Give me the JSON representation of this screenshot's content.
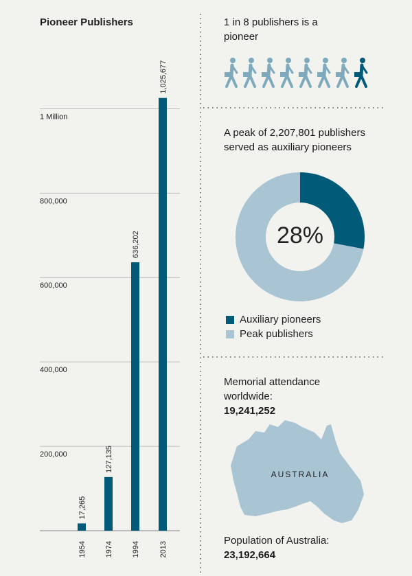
{
  "chart_data": [
    {
      "type": "bar",
      "title": "Pioneer Publishers",
      "categories": [
        "1954",
        "1974",
        "1994",
        "2013"
      ],
      "values": [
        17265,
        127135,
        636202,
        1025677
      ],
      "value_labels": [
        "17,265",
        "127,135",
        "636,202",
        "1,025,677"
      ],
      "color": "#005a78",
      "ylim": [
        0,
        1100000
      ],
      "yticks": [
        {
          "value": 200000,
          "label": "200,000"
        },
        {
          "value": 400000,
          "label": "400,000"
        },
        {
          "value": 600000,
          "label": "600,000"
        },
        {
          "value": 800000,
          "label": "800,000"
        },
        {
          "value": 1000000,
          "label": "1 Million"
        }
      ],
      "grid": true
    },
    {
      "type": "pictogram",
      "title": "1 in 8 publishers is a pioneer",
      "total": 8,
      "highlighted": 1,
      "color": "#7fa9bd",
      "highlight_color": "#005a78"
    },
    {
      "type": "pie",
      "title": "A peak of 2,207,801 publishers served as auxiliary pioneers",
      "categories": [
        "Auxiliary pioneers",
        "Peak publishers"
      ],
      "values": [
        28,
        72
      ],
      "value_labels": [
        "28%",
        null
      ],
      "colors": [
        "#005a78",
        "#a9c4d2"
      ]
    }
  ],
  "memorial": {
    "label": "Memorial attendance worldwide:",
    "value": "19,241,252"
  },
  "australia": {
    "map_label": "AUSTRALIA",
    "label": "Population of Australia:",
    "value": "23,192,664"
  }
}
